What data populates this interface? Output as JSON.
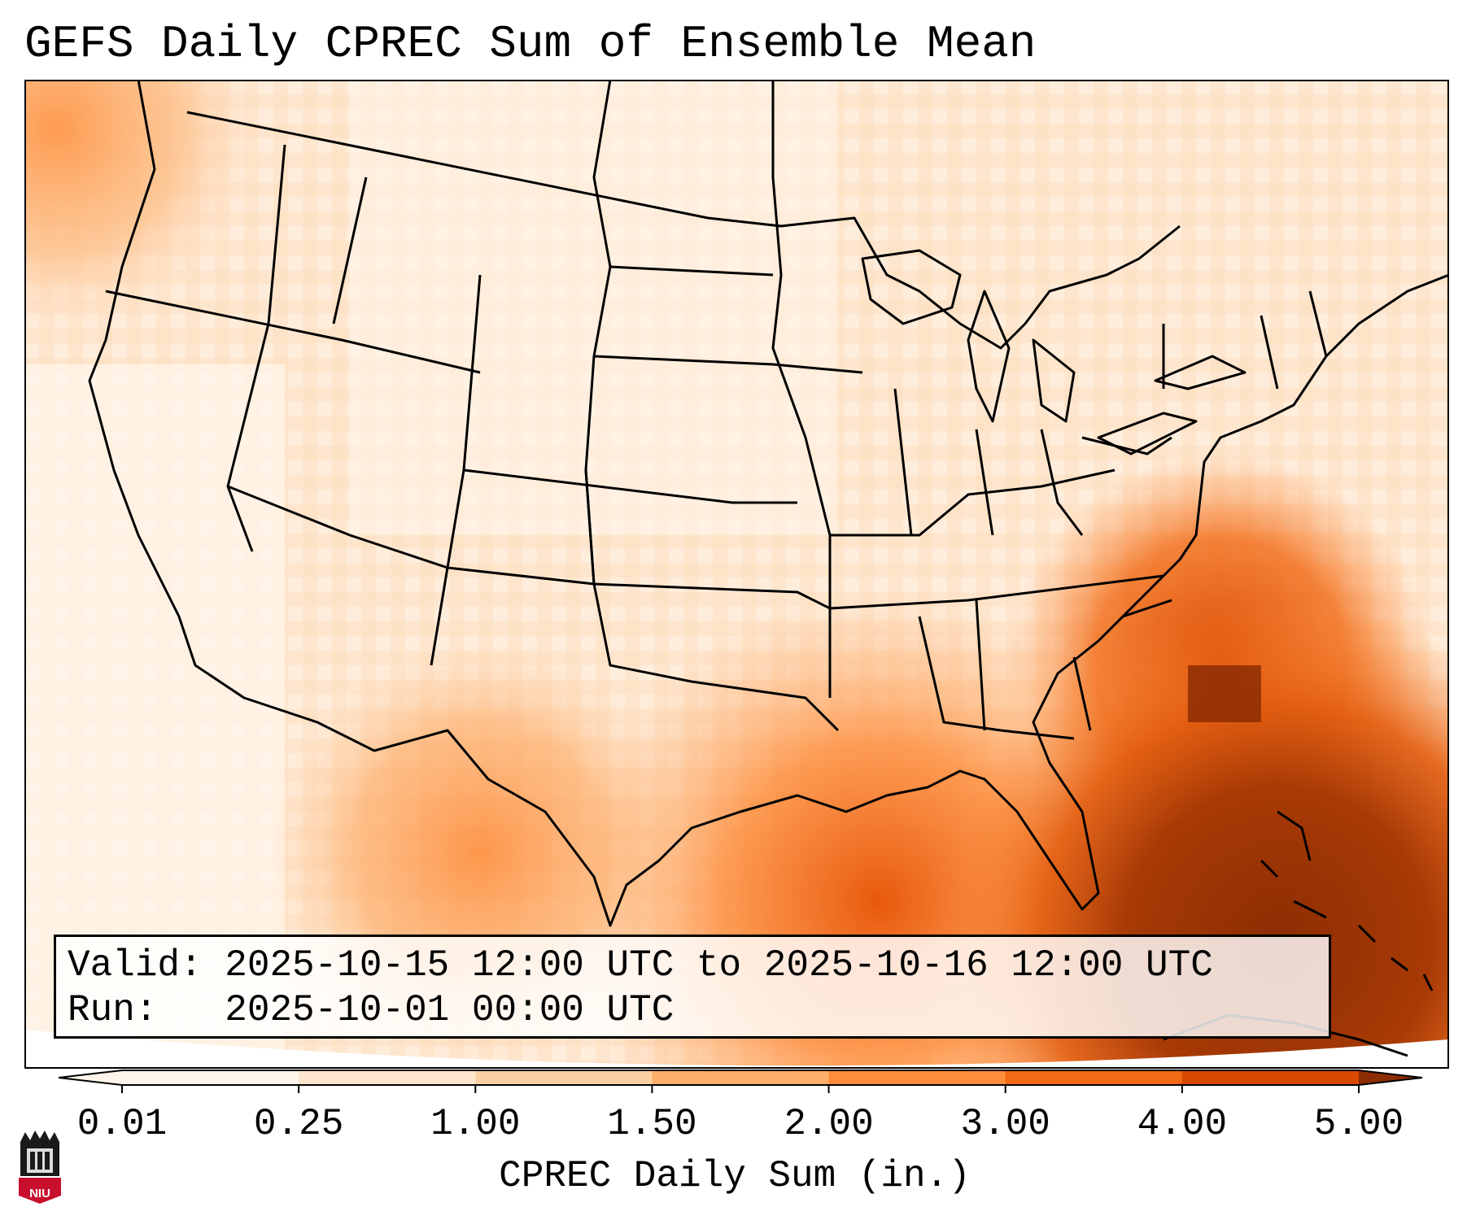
{
  "title": "GEFS Daily CPREC Sum of Ensemble Mean",
  "info": {
    "valid_line": "Valid: 2025-10-15 12:00 UTC to 2025-10-16 12:00 UTC",
    "run_line": "Run:   2025-10-01 00:00 UTC"
  },
  "colorbar": {
    "label": "CPREC Daily Sum (in.)",
    "ticks": [
      "0.01",
      "0.25",
      "1.00",
      "1.50",
      "2.00",
      "3.00",
      "4.00",
      "5.00"
    ],
    "colors": [
      "#fff5eb",
      "#fee6ce",
      "#fdd0a2",
      "#fdae6b",
      "#fd8d3c",
      "#f16913",
      "#d94801",
      "#8c2d04"
    ],
    "extend": "both"
  },
  "logo": {
    "text": "NIU",
    "color": "#c8102e"
  },
  "map": {
    "projection": "Lambert Conformal (CONUS)",
    "heavy_precip_regions": [
      "Atlantic off Southeast coast",
      "Caribbean / Gulf of Mexico south",
      "Gulf Coast"
    ]
  }
}
